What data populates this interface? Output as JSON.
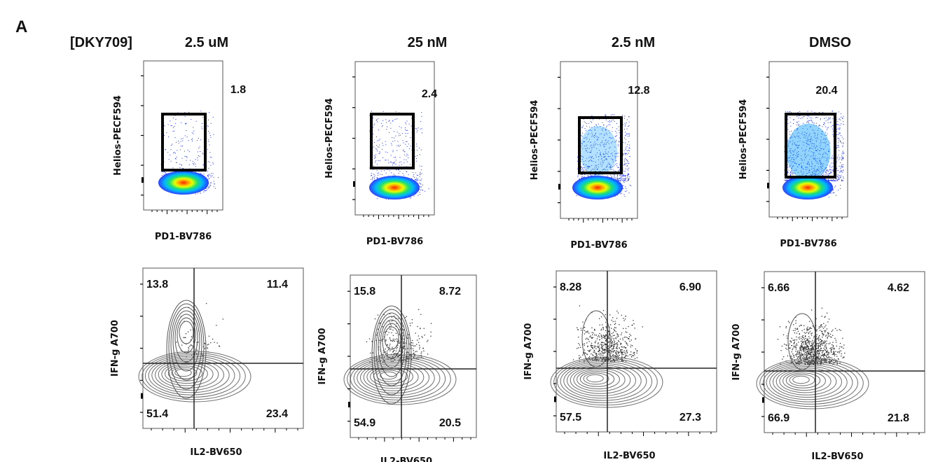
{
  "panel_label": "A",
  "compound_label": "[DKY709]",
  "conditions": [
    "2.5 uM",
    "25 nM",
    "2.5 nM",
    "DMSO"
  ],
  "colors": {
    "gate": "#000000",
    "dots": "#1a2cff",
    "contour": "#555555"
  },
  "chart_data": [
    {
      "type": "scatter",
      "subtype": "flow-cytometry-pseudocolor",
      "row": "top",
      "condition": "2.5 uM",
      "xlabel": "PD1-BV786",
      "ylabel": "Helios-PECF594",
      "gate_percent": "1.8"
    },
    {
      "type": "scatter",
      "subtype": "flow-cytometry-pseudocolor",
      "row": "top",
      "condition": "25 nM",
      "xlabel": "PD1-BV786",
      "ylabel": "Helios-PECF594",
      "gate_percent": "2.4"
    },
    {
      "type": "scatter",
      "subtype": "flow-cytometry-pseudocolor",
      "row": "top",
      "condition": "2.5 nM",
      "xlabel": "PD1-BV786",
      "ylabel": "Helios-PECF594",
      "gate_percent": "12.8"
    },
    {
      "type": "scatter",
      "subtype": "flow-cytometry-pseudocolor",
      "row": "top",
      "condition": "DMSO",
      "xlabel": "PD1-BV786",
      "ylabel": "Helios-PECF594",
      "gate_percent": "20.4"
    },
    {
      "type": "scatter",
      "subtype": "flow-cytometry-contour-quadrant",
      "row": "bottom",
      "condition": "2.5 uM",
      "xlabel": "IL2-BV650",
      "ylabel": "IFN-g A700",
      "quadrants": {
        "upper_left": "13.8",
        "upper_right": "11.4",
        "lower_left": "51.4",
        "lower_right": "23.4"
      }
    },
    {
      "type": "scatter",
      "subtype": "flow-cytometry-contour-quadrant",
      "row": "bottom",
      "condition": "25 nM",
      "xlabel": "IL2-BV650",
      "ylabel": "IFN-g A700",
      "quadrants": {
        "upper_left": "15.8",
        "upper_right": "8.72",
        "lower_left": "54.9",
        "lower_right": "20.5"
      }
    },
    {
      "type": "scatter",
      "subtype": "flow-cytometry-contour-quadrant",
      "row": "bottom",
      "condition": "2.5 nM",
      "xlabel": "IL2-BV650",
      "ylabel": "IFN-g A700",
      "quadrants": {
        "upper_left": "8.28",
        "upper_right": "6.90",
        "lower_left": "57.5",
        "lower_right": "27.3"
      }
    },
    {
      "type": "scatter",
      "subtype": "flow-cytometry-contour-quadrant",
      "row": "bottom",
      "condition": "DMSO",
      "xlabel": "IL2-BV650",
      "ylabel": "IFN-g A700",
      "quadrants": {
        "upper_left": "6.66",
        "upper_right": "4.62",
        "lower_left": "66.9",
        "lower_right": "21.8"
      }
    }
  ]
}
